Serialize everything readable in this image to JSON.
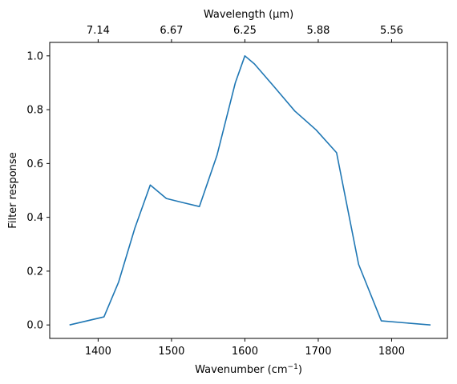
{
  "chart_data": {
    "type": "line",
    "xlabel": "Wavenumber (cm⁻¹)",
    "ylabel": "Filter response",
    "top_xlabel": "Wavelength (μm)",
    "xlim": [
      1334,
      1876
    ],
    "ylim": [
      -0.05,
      1.05
    ],
    "xticks": [
      1400,
      1500,
      1600,
      1700,
      1800
    ],
    "yticks": [
      0.0,
      0.2,
      0.4,
      0.6,
      0.8,
      1.0
    ],
    "top_ticks": [
      {
        "wavenumber": 1400,
        "label": "7.14"
      },
      {
        "wavenumber": 1500,
        "label": "6.67"
      },
      {
        "wavenumber": 1600,
        "label": "6.25"
      },
      {
        "wavenumber": 1700,
        "label": "5.88"
      },
      {
        "wavenumber": 1800,
        "label": "5.56"
      }
    ],
    "grid": false,
    "series": [
      {
        "color": "#1f77b4",
        "x": [
          1361,
          1408,
          1428,
          1450,
          1471,
          1493,
          1515,
          1538,
          1562,
          1587,
          1600,
          1613,
          1640,
          1668,
          1697,
          1725,
          1755,
          1786,
          1853
        ],
        "y": [
          0.0,
          0.03,
          0.16,
          0.36,
          0.52,
          0.47,
          0.455,
          0.44,
          0.63,
          0.9,
          1.0,
          0.97,
          0.885,
          0.795,
          0.725,
          0.64,
          0.225,
          0.015,
          0.0
        ]
      }
    ]
  }
}
